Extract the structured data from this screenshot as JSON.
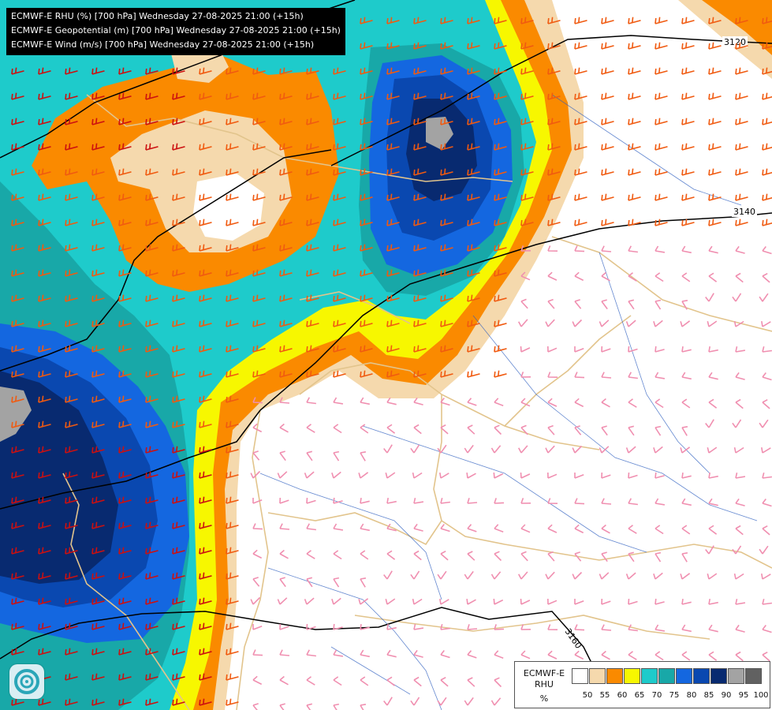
{
  "title_lines": [
    "ECMWF-E RHU (%) [700 hPa] Wednesday 27-08-2025 21:00 (+15h)",
    "ECMWF-E Geopotential (m) [700 hPa] Wednesday 27-08-2025 21:00 (+15h)",
    "ECMWF-E Wind (m/s) [700 hPa] Wednesday 27-08-2025 21:00 (+15h)"
  ],
  "contours": [
    {
      "value": "3120",
      "label": "3120"
    },
    {
      "value": "3140",
      "label": "3140"
    },
    {
      "value": "3160",
      "label": "3160"
    }
  ],
  "legend": {
    "name_line1": "ECMWF-E",
    "name_line2": "RHU",
    "unit": "%",
    "colors": [
      "#ffffff",
      "#f5d9ad",
      "#fa8a00",
      "#f7f700",
      "#1ecbcb",
      "#18a8a8",
      "#1467e0",
      "#0a48b0",
      "#082a70",
      "#a3a3a3",
      "#616161"
    ],
    "ticks": [
      "50",
      "55",
      "60",
      "65",
      "70",
      "75",
      "80",
      "85",
      "90",
      "95",
      "100"
    ]
  },
  "logo_icon": "weather-provider-logo-icon"
}
